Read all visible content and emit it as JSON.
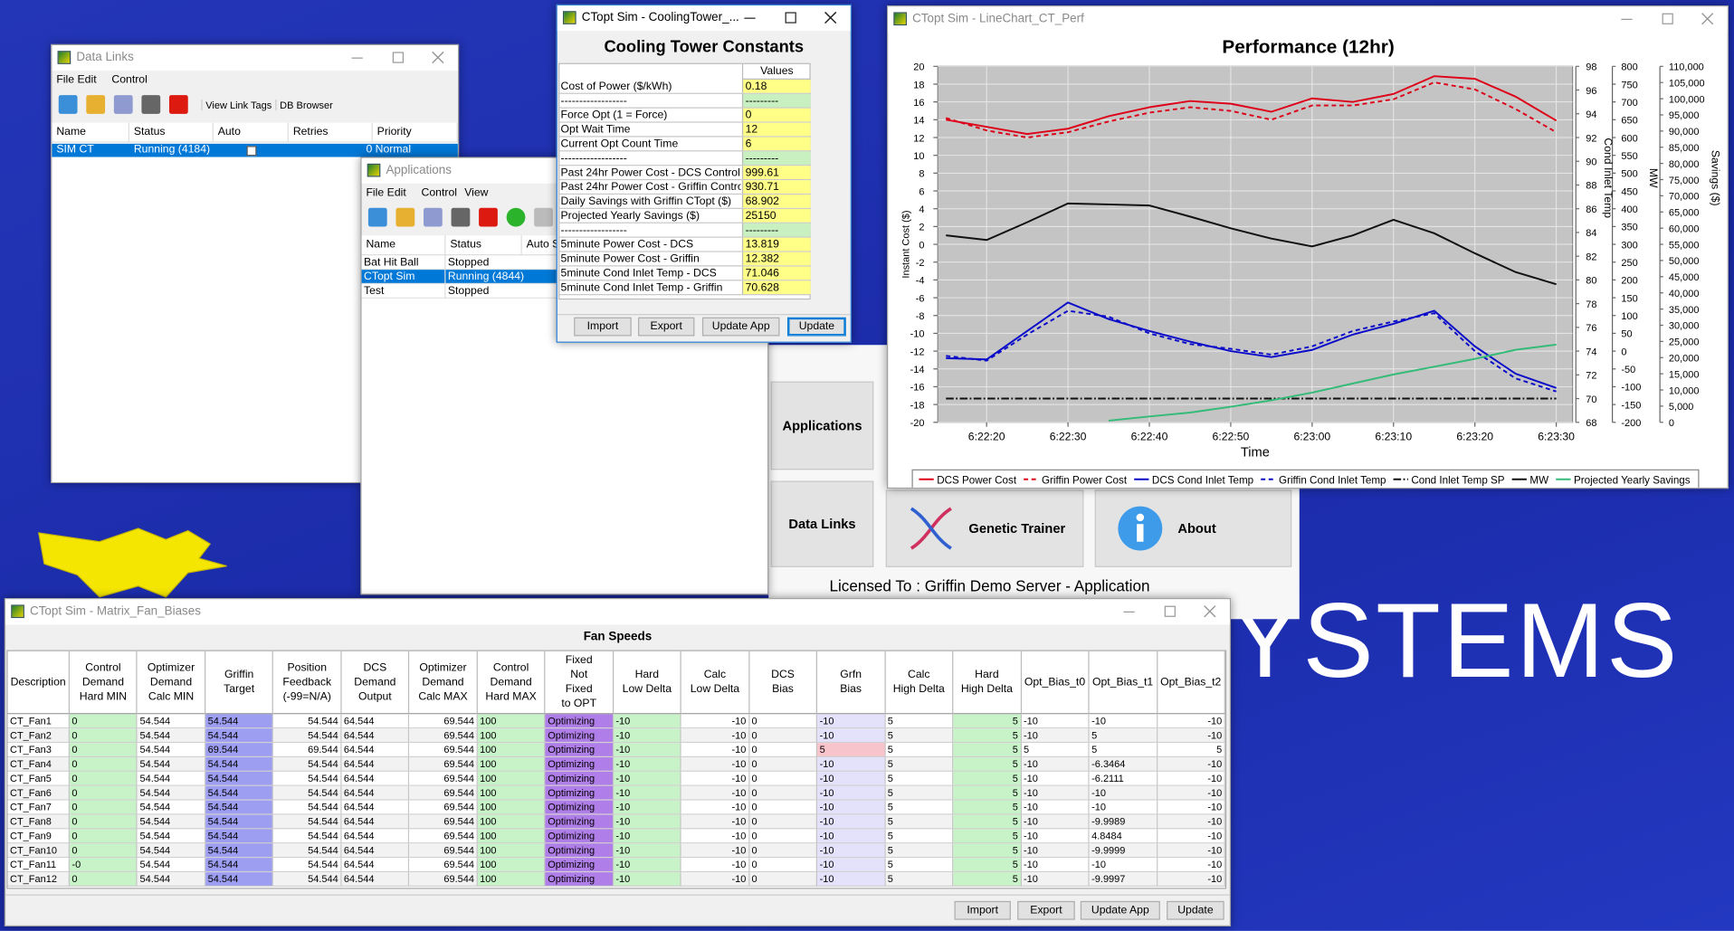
{
  "desktop": {
    "brand": "YSTEMS",
    "licensed": "Licensed To :  Griffin Demo Server - Application"
  },
  "launcher": {
    "buttons": [
      "Applications",
      "Data Links",
      "Genetic Trainer",
      "About"
    ]
  },
  "data_links": {
    "title": "Data Links",
    "menu": [
      "File",
      "Edit",
      "Control"
    ],
    "toolbar": [
      "View Link Tags",
      "DB Browser"
    ],
    "columns": [
      "Name",
      "Status",
      "Auto",
      "Retries",
      "Priority"
    ],
    "rows": [
      {
        "name": "SIM CT",
        "status": "Running (4184)",
        "priority": "0 Normal"
      }
    ]
  },
  "applications": {
    "title": "Applications",
    "menu": [
      "File",
      "Edit",
      "Control",
      "View"
    ],
    "columns": [
      "Name",
      "Status",
      "Auto S"
    ],
    "rows": [
      {
        "name": "Bat Hit Ball",
        "status": "Stopped"
      },
      {
        "name": "CTopt Sim",
        "status": "Running (4844)"
      },
      {
        "name": "Test",
        "status": "Stopped"
      }
    ]
  },
  "constants": {
    "window_title": "CTopt Sim - CoolingTower_...",
    "title": "Cooling Tower Constants",
    "column": "Values",
    "rows": [
      [
        "Cost of Power ($/kWh)",
        "0.18"
      ],
      [
        "------------------",
        "---------"
      ],
      [
        "Force Opt (1 = Force)",
        "0"
      ],
      [
        "Opt Wait Time",
        "12"
      ],
      [
        "Current Opt Count Time",
        "6"
      ],
      [
        "------------------",
        "---------"
      ],
      [
        "Past 24hr Power Cost - DCS Control",
        "999.61"
      ],
      [
        "Past 24hr Power Cost - Griffin Control",
        "930.71"
      ],
      [
        "Daily Savings with Griffin CTopt ($)",
        "68.902"
      ],
      [
        "Projected Yearly Savings ($)",
        "25150"
      ],
      [
        "------------------",
        "---------"
      ],
      [
        "5minute Power Cost - DCS",
        "13.819"
      ],
      [
        "5minute Power Cost - Griffin",
        "12.382"
      ],
      [
        "5minute Cond Inlet Temp - DCS",
        "71.046"
      ],
      [
        "5minute Cond Inlet Temp - Griffin",
        "70.628"
      ]
    ],
    "buttons": [
      "Import",
      "Export",
      "Update App",
      "Update"
    ]
  },
  "chart_data": {
    "window_title": "CTopt Sim - LineChart_CT_Perf",
    "type": "line",
    "title": "Performance (12hr)",
    "x_label": "Time",
    "y_label": "Instant Cost ($)",
    "y2_label": "Cond Inlet Temp",
    "y3_label": "MW",
    "y4_label": "Savings ($)",
    "grid": true,
    "legend": "bottom",
    "x": [
      "6:22:15",
      "6:22:20",
      "6:22:25",
      "6:22:30",
      "6:22:35",
      "6:22:40",
      "6:22:45",
      "6:22:50",
      "6:22:55",
      "6:23:00",
      "6:23:05",
      "6:23:10",
      "6:23:15",
      "6:23:20",
      "6:23:25",
      "6:23:30"
    ],
    "xlim": [
      "6:22:14",
      "6:23:32"
    ],
    "xticks": [
      "6:22:20",
      "6:22:30",
      "6:22:40",
      "6:22:50",
      "6:23:00",
      "6:23:10",
      "6:23:20",
      "6:23:30"
    ],
    "ylim": [
      -20,
      20
    ],
    "yticks": [
      -20,
      -18,
      -16,
      -14,
      -12,
      -10,
      -8,
      -6,
      -4,
      -2,
      0,
      2,
      4,
      6,
      8,
      10,
      12,
      14,
      16,
      18,
      20
    ],
    "y2lim": [
      68,
      98
    ],
    "y2ticks": [
      68,
      70,
      72,
      74,
      76,
      78,
      80,
      82,
      84,
      86,
      88,
      90,
      92,
      94,
      96,
      98
    ],
    "y3lim": [
      -200,
      800
    ],
    "y3ticks": [
      -200,
      -150,
      -100,
      -50,
      0,
      50,
      100,
      150,
      200,
      250,
      300,
      350,
      400,
      450,
      500,
      550,
      600,
      650,
      700,
      750,
      800
    ],
    "y4lim": [
      0,
      110000
    ],
    "y4ticks": [
      0,
      {
        "value": 5000,
        "label": "5,000"
      },
      {
        "value": 10000,
        "label": "10,000"
      },
      {
        "value": 15000,
        "label": "15,000"
      },
      {
        "value": 20000,
        "label": "20,000"
      },
      {
        "value": 25000,
        "label": "25,000"
      },
      {
        "value": 30000,
        "label": "30,000"
      },
      {
        "value": 35000,
        "label": "35,000"
      },
      {
        "value": 40000,
        "label": "40,000"
      },
      {
        "value": 45000,
        "label": "45,000"
      },
      {
        "value": 50000,
        "label": "50,000"
      },
      {
        "value": 55000,
        "label": "55,000"
      },
      {
        "value": 60000,
        "label": "60,000"
      },
      {
        "value": 65000,
        "label": "65,000"
      },
      {
        "value": 70000,
        "label": "70,000"
      },
      {
        "value": 75000,
        "label": "75,000"
      },
      {
        "value": 80000,
        "label": "80,000"
      },
      {
        "value": 85000,
        "label": "85,000"
      },
      {
        "value": 90000,
        "label": "90,000"
      },
      {
        "value": 95000,
        "label": "95,000"
      },
      {
        "value": 100000,
        "label": "100,000"
      },
      {
        "value": 105000,
        "label": "105,000"
      },
      {
        "value": 110000,
        "label": "110,000"
      }
    ],
    "series": [
      {
        "name": "DCS Power Cost",
        "color": "#dd0018",
        "dash": "solid",
        "axis": "y",
        "values": [
          14.0,
          13.2,
          12.4,
          13.0,
          14.4,
          15.4,
          16.1,
          15.8,
          14.9,
          16.4,
          16.0,
          16.9,
          18.9,
          18.6,
          16.6,
          13.9
        ]
      },
      {
        "name": "Griffin Power Cost",
        "color": "#dd0018",
        "dash": "dashed",
        "axis": "y",
        "values": [
          14.2,
          12.8,
          12.0,
          12.6,
          13.8,
          14.8,
          15.4,
          15.0,
          14.0,
          15.6,
          15.6,
          16.3,
          18.2,
          17.4,
          15.2,
          12.6
        ]
      },
      {
        "name": "DCS Cond Inlet Temp",
        "color": "#0a0ac8",
        "dash": "solid",
        "axis": "y2",
        "values": [
          73.4,
          73.3,
          75.7,
          78.1,
          76.7,
          75.7,
          74.8,
          74.0,
          73.5,
          74.1,
          75.4,
          76.3,
          77.4,
          74.4,
          72.1,
          70.9
        ]
      },
      {
        "name": "Griffin Cond Inlet Temp",
        "color": "#0a0ac8",
        "dash": "dashed",
        "axis": "y2",
        "values": [
          73.6,
          73.2,
          75.4,
          77.4,
          76.9,
          75.5,
          74.6,
          74.2,
          73.7,
          74.4,
          75.7,
          76.5,
          77.2,
          74.0,
          71.7,
          70.6
        ]
      },
      {
        "name": "Cond Inlet Temp SP",
        "color": "#111111",
        "dash": "dashdot",
        "axis": "y2",
        "values": [
          70,
          70,
          70,
          70,
          70,
          70,
          70,
          70,
          70,
          70,
          70,
          70,
          70,
          70,
          70,
          70
        ]
      },
      {
        "name": "MW",
        "color": "#111111",
        "dash": "solid",
        "axis": "y3",
        "values": [
          325,
          312,
          362,
          415,
          412,
          409,
          378,
          345,
          316,
          294,
          325,
          369,
          331,
          275,
          222,
          188
        ]
      },
      {
        "name": "Projected Yearly Savings",
        "color": "#33bb77",
        "dash": "solid",
        "axis": "y4",
        "values": [
          null,
          null,
          null,
          null,
          500,
          1800,
          3000,
          4800,
          6800,
          9200,
          12000,
          14800,
          17200,
          19600,
          22400,
          24000
        ]
      }
    ]
  },
  "fans": {
    "window_title": "CTopt Sim - Matrix_Fan_Biases",
    "title": "Fan Speeds",
    "columns": [
      [
        "Description"
      ],
      [
        "Control",
        "Demand",
        "Hard MIN"
      ],
      [
        "Optimizer",
        "Demand",
        "Calc MIN"
      ],
      [
        "Griffin",
        "Target"
      ],
      [
        "Position",
        "Feedback",
        "(-99=N/A)"
      ],
      [
        "DCS",
        "Demand",
        "Output"
      ],
      [
        "Optimizer",
        "Demand",
        "Calc MAX"
      ],
      [
        "Control",
        "Demand",
        "Hard MAX"
      ],
      [
        "Fixed",
        "Not",
        "Fixed",
        "to OPT"
      ],
      [
        "Hard",
        "Low Delta"
      ],
      [
        "Calc",
        "Low Delta"
      ],
      [
        "DCS",
        "Bias"
      ],
      [
        "Grfn",
        "Bias"
      ],
      [
        "Calc",
        "High Delta"
      ],
      [
        "Hard",
        "High Delta"
      ],
      [
        "Opt_Bias_t0"
      ],
      [
        "Opt_Bias_t1"
      ],
      [
        "Opt_Bias_t2"
      ]
    ],
    "rows": [
      [
        "CT_Fan1",
        "0",
        "54.544",
        "54.544",
        "54.544",
        "64.544",
        "69.544",
        "100",
        "Optimizing",
        "-10",
        "-10",
        "0",
        "-10",
        "5",
        "5",
        "-10",
        "-10",
        "-10"
      ],
      [
        "CT_Fan2",
        "0",
        "54.544",
        "54.544",
        "54.544",
        "64.544",
        "69.544",
        "100",
        "Optimizing",
        "-10",
        "-10",
        "0",
        "-10",
        "5",
        "5",
        "-10",
        "5",
        "-10"
      ],
      [
        "CT_Fan3",
        "0",
        "54.544",
        "69.544",
        "69.544",
        "64.544",
        "69.544",
        "100",
        "Optimizing",
        "-10",
        "-10",
        "0",
        "5",
        "5",
        "5",
        "5",
        "5",
        "5"
      ],
      [
        "CT_Fan4",
        "0",
        "54.544",
        "54.544",
        "54.544",
        "64.544",
        "69.544",
        "100",
        "Optimizing",
        "-10",
        "-10",
        "0",
        "-10",
        "5",
        "5",
        "-10",
        "-6.3464",
        "-10"
      ],
      [
        "CT_Fan5",
        "0",
        "54.544",
        "54.544",
        "54.544",
        "64.544",
        "69.544",
        "100",
        "Optimizing",
        "-10",
        "-10",
        "0",
        "-10",
        "5",
        "5",
        "-10",
        "-6.2111",
        "-10"
      ],
      [
        "CT_Fan6",
        "0",
        "54.544",
        "54.544",
        "54.544",
        "64.544",
        "69.544",
        "100",
        "Optimizing",
        "-10",
        "-10",
        "0",
        "-10",
        "5",
        "5",
        "-10",
        "-10",
        "-10"
      ],
      [
        "CT_Fan7",
        "0",
        "54.544",
        "54.544",
        "54.544",
        "64.544",
        "69.544",
        "100",
        "Optimizing",
        "-10",
        "-10",
        "0",
        "-10",
        "5",
        "5",
        "-10",
        "-10",
        "-10"
      ],
      [
        "CT_Fan8",
        "0",
        "54.544",
        "54.544",
        "54.544",
        "64.544",
        "69.544",
        "100",
        "Optimizing",
        "-10",
        "-10",
        "0",
        "-10",
        "5",
        "5",
        "-10",
        "-9.9989",
        "-10"
      ],
      [
        "CT_Fan9",
        "0",
        "54.544",
        "54.544",
        "54.544",
        "64.544",
        "69.544",
        "100",
        "Optimizing",
        "-10",
        "-10",
        "0",
        "-10",
        "5",
        "5",
        "-10",
        "4.8484",
        "-10"
      ],
      [
        "CT_Fan10",
        "0",
        "54.544",
        "54.544",
        "54.544",
        "64.544",
        "69.544",
        "100",
        "Optimizing",
        "-10",
        "-10",
        "0",
        "-10",
        "5",
        "5",
        "-10",
        "-9.9999",
        "-10"
      ],
      [
        "CT_Fan11",
        "-0",
        "54.544",
        "54.544",
        "54.544",
        "64.544",
        "69.544",
        "100",
        "Optimizing",
        "-10",
        "-10",
        "0",
        "-10",
        "5",
        "5",
        "-10",
        "-10",
        "-10"
      ],
      [
        "CT_Fan12",
        "0",
        "54.544",
        "54.544",
        "54.544",
        "64.544",
        "69.544",
        "100",
        "Optimizing",
        "-10",
        "-10",
        "0",
        "-10",
        "5",
        "5",
        "-10",
        "-9.9997",
        "-10"
      ]
    ],
    "buttons": [
      "Import",
      "Export",
      "Update App",
      "Update"
    ]
  }
}
